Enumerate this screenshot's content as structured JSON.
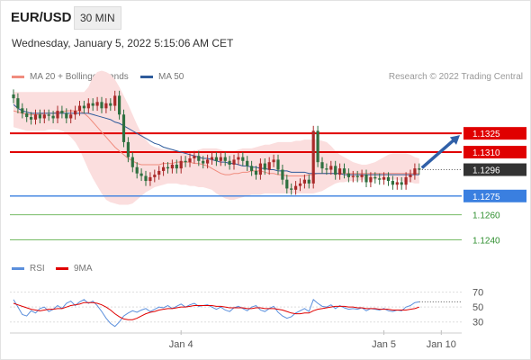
{
  "header": {
    "symbol": "EUR/USD",
    "timeframe": "30 MIN",
    "datetime": "Wednesday, January 5, 2022 5:15:06 AM CET"
  },
  "legend": {
    "ma20": {
      "label": "MA 20 + Bollinger Bands",
      "color": "#f08c7e"
    },
    "ma50": {
      "label": "MA 50",
      "color": "#2e5b9b"
    },
    "copyright": "Research © 2022 Trading Central"
  },
  "rsi_legend": {
    "rsi": {
      "label": "RSI",
      "color": "#5b8fdc"
    },
    "ma9": {
      "label": "9MA",
      "color": "#e00000"
    }
  },
  "colors": {
    "resistance": "#e00000",
    "support_primary": "#3a7fe0",
    "support": "#77bb66",
    "current": "#333333",
    "bull": "#aa2a2a",
    "bear": "#2f7040",
    "band": "#fbdede",
    "arrow": "#3060a8"
  },
  "chart_data": [
    {
      "type": "candlestick",
      "x_tick_labels": [
        "Jan 4",
        "Jan 5",
        "Jan 10"
      ],
      "ylim": [
        1.1226,
        1.1356
      ],
      "current_price": 1.1296,
      "levels": [
        {
          "value": 1.1325,
          "label": "1.1325",
          "kind": "resistance"
        },
        {
          "value": 1.131,
          "label": "1.1310",
          "kind": "resistance"
        },
        {
          "value": 1.1296,
          "label": "1.1296",
          "kind": "current"
        },
        {
          "value": 1.1275,
          "label": "1.1275",
          "kind": "support_primary"
        },
        {
          "value": 1.126,
          "label": "1.1260",
          "kind": "support"
        },
        {
          "value": 1.124,
          "label": "1.1240",
          "kind": "support"
        }
      ],
      "close": [
        1.1353,
        1.1345,
        1.1341,
        1.1338,
        1.1336,
        1.134,
        1.1337,
        1.134,
        1.1339,
        1.1337,
        1.1343,
        1.1341,
        1.1337,
        1.134,
        1.1343,
        1.1347,
        1.1345,
        1.1349,
        1.1347,
        1.135,
        1.1345,
        1.1349,
        1.1347,
        1.1355,
        1.134,
        1.1318,
        1.1306,
        1.1298,
        1.1293,
        1.1291,
        1.1287,
        1.129,
        1.1292,
        1.1295,
        1.1298,
        1.1297,
        1.13,
        1.1297,
        1.1303,
        1.1302,
        1.1305,
        1.1307,
        1.1303,
        1.1301,
        1.1304,
        1.1306,
        1.1303,
        1.1306,
        1.1303,
        1.13,
        1.1304,
        1.1306,
        1.1303,
        1.1299,
        1.1295,
        1.1292,
        1.1301,
        1.1296,
        1.1302,
        1.1304,
        1.1296,
        1.1288,
        1.1281,
        1.128,
        1.1283,
        1.1285,
        1.1288,
        1.1285,
        1.1327,
        1.1302,
        1.1297,
        1.1296,
        1.1299,
        1.1292,
        1.1297,
        1.1293,
        1.129,
        1.1291,
        1.129,
        1.1292,
        1.1286,
        1.129,
        1.1289,
        1.1288,
        1.129,
        1.1287,
        1.1284,
        1.1286,
        1.1284,
        1.129,
        1.1292,
        1.1297,
        1.1296
      ],
      "ma20": [
        1.1343,
        1.1342,
        1.1341,
        1.134,
        1.134,
        1.134,
        1.134,
        1.1341,
        1.1341,
        1.1341,
        1.1342,
        1.1342,
        1.1343,
        1.1343,
        1.1343,
        1.1343,
        1.1341,
        1.1338,
        1.1334,
        1.133,
        1.1326,
        1.1322,
        1.1318,
        1.1314,
        1.1311,
        1.1308,
        1.1305,
        1.1303,
        1.1301,
        1.13,
        1.13,
        1.13,
        1.13,
        1.13,
        1.1301,
        1.1301,
        1.1301,
        1.1302,
        1.1302,
        1.1302,
        1.1302,
        1.1301,
        1.1301,
        1.13,
        1.1299,
        1.1297,
        1.1295,
        1.1293,
        1.1292,
        1.1292,
        1.1293,
        1.1293,
        1.1294,
        1.1294,
        1.1295,
        1.1295,
        1.1295,
        1.1294,
        1.1293,
        1.1293,
        1.1292,
        1.1292,
        1.1291,
        1.1291,
        1.1291,
        1.1291,
        1.1291,
        1.1292,
        1.1292,
        1.1293,
        1.1293,
        1.1293,
        1.1293,
        1.1293,
        1.1293,
        1.1293,
        1.1293,
        1.1293,
        1.1293,
        1.1293,
        1.1293,
        1.1293,
        1.1293,
        1.1293,
        1.1293,
        1.1293,
        1.1293,
        1.1293,
        1.1293,
        1.1293,
        1.1293,
        1.1293,
        1.1293
      ],
      "bb_upper": [
        1.1358,
        1.1358,
        1.1358,
        1.1358,
        1.1358,
        1.1358,
        1.1358,
        1.1358,
        1.1358,
        1.1358,
        1.1358,
        1.1358,
        1.1358,
        1.1358,
        1.1358,
        1.1358,
        1.1358,
        1.1362,
        1.137,
        1.1374,
        1.1375,
        1.1374,
        1.1372,
        1.1368,
        1.1362,
        1.1355,
        1.1348,
        1.134,
        1.1332,
        1.1325,
        1.132,
        1.1316,
        1.1314,
        1.1313,
        1.1312,
        1.1312,
        1.1311,
        1.1311,
        1.1311,
        1.1311,
        1.1311,
        1.1311,
        1.1312,
        1.1313,
        1.1313,
        1.1313,
        1.1313,
        1.1312,
        1.1311,
        1.1311,
        1.1311,
        1.1312,
        1.1313,
        1.1313,
        1.1313,
        1.1314,
        1.1315,
        1.1316,
        1.1316,
        1.1317,
        1.1318,
        1.1318,
        1.1318,
        1.1318,
        1.1319,
        1.1319,
        1.132,
        1.132,
        1.132,
        1.132,
        1.1319,
        1.1318,
        1.1315,
        1.1311,
        1.1308,
        1.1306,
        1.1304,
        1.1302,
        1.1301,
        1.13,
        1.13,
        1.1301,
        1.1302,
        1.1304,
        1.1306,
        1.1308,
        1.1309,
        1.1309,
        1.1309,
        1.1309,
        1.1308,
        1.1306,
        1.1305
      ],
      "bb_lower": [
        1.133,
        1.1329,
        1.1328,
        1.1327,
        1.1327,
        1.1327,
        1.1327,
        1.1327,
        1.1328,
        1.1328,
        1.1328,
        1.1327,
        1.1325,
        1.1322,
        1.1318,
        1.1312,
        1.1304,
        1.1296,
        1.1289,
        1.1283,
        1.1277,
        1.1272,
        1.127,
        1.1269,
        1.1268,
        1.1268,
        1.1268,
        1.1269,
        1.1272,
        1.1275,
        1.1278,
        1.128,
        1.1282,
        1.1283,
        1.1284,
        1.1285,
        1.1285,
        1.1285,
        1.1284,
        1.1284,
        1.1283,
        1.1283,
        1.1282,
        1.1282,
        1.1281,
        1.128,
        1.1277,
        1.1275,
        1.1273,
        1.1272,
        1.1272,
        1.1273,
        1.1274,
        1.1275,
        1.1276,
        1.1276,
        1.1276,
        1.1277,
        1.1277,
        1.1277,
        1.1277,
        1.1277,
        1.1277,
        1.1277,
        1.1277,
        1.1277,
        1.1277,
        1.1277,
        1.1277,
        1.1278,
        1.1279,
        1.1281,
        1.1283,
        1.1285,
        1.1286,
        1.1286,
        1.1287,
        1.1287,
        1.1287,
        1.1288,
        1.1288,
        1.1288,
        1.1288,
        1.1288,
        1.1288,
        1.1288,
        1.1288,
        1.1288,
        1.1287,
        1.1286,
        1.1286,
        1.1285,
        1.1285
      ],
      "ma50": [
        1.1348,
        1.1345,
        1.1343,
        1.1342,
        1.1341,
        1.1341,
        1.1341,
        1.1341,
        1.1341,
        1.1341,
        1.1341,
        1.1341,
        1.1341,
        1.1341,
        1.1341,
        1.1341,
        1.1341,
        1.1341,
        1.134,
        1.1339,
        1.1338,
        1.1337,
        1.1336,
        1.1334,
        1.1333,
        1.1331,
        1.1329,
        1.1327,
        1.1325,
        1.1323,
        1.1321,
        1.1319,
        1.1317,
        1.1316,
        1.1314,
        1.1313,
        1.1312,
        1.1311,
        1.131,
        1.1309,
        1.1308,
        1.1307,
        1.1306,
        1.1305,
        1.1305,
        1.1304,
        1.1303,
        1.1302,
        1.1302,
        1.1301,
        1.1301,
        1.13,
        1.1299,
        1.1299,
        1.1298,
        1.1298,
        1.1297,
        1.1297,
        1.1296,
        1.1296,
        1.1295,
        1.1295,
        1.1295,
        1.1294,
        1.1294,
        1.1294,
        1.1294,
        1.1293,
        1.1293,
        1.1293,
        1.1293,
        1.1293,
        1.1293,
        1.1293,
        1.1293,
        1.1292,
        1.1292,
        1.1292,
        1.1292,
        1.1292,
        1.1292,
        1.1292,
        1.1292,
        1.1292,
        1.1292,
        1.1292,
        1.1292,
        1.1292,
        1.1292,
        1.1292,
        1.1292,
        1.1292,
        1.1292
      ],
      "projection": {
        "from": 1.1296,
        "to": 1.1325
      }
    },
    {
      "type": "line",
      "title": "RSI",
      "ylim": [
        20,
        78
      ],
      "y_tick_labels": [
        "70",
        "50",
        "30"
      ],
      "series": [
        {
          "name": "RSI",
          "values": [
            60,
            50,
            40,
            38,
            45,
            42,
            48,
            50,
            44,
            47,
            52,
            48,
            55,
            58,
            52,
            57,
            60,
            55,
            58,
            52,
            44,
            35,
            28,
            24,
            30,
            38,
            42,
            45,
            43,
            46,
            48,
            44,
            47,
            50,
            49,
            52,
            48,
            51,
            54,
            50,
            53,
            55,
            51,
            52,
            53,
            50,
            47,
            50,
            46,
            44,
            49,
            51,
            48,
            45,
            50,
            52,
            46,
            44,
            48,
            51,
            43,
            38,
            35,
            37,
            42,
            45,
            48,
            44,
            60,
            55,
            51,
            50,
            53,
            48,
            52,
            49,
            47,
            48,
            47,
            49,
            45,
            48,
            47,
            46,
            48,
            45,
            44,
            46,
            45,
            50,
            52,
            56,
            57
          ]
        },
        {
          "name": "9MA",
          "values": [
            55,
            53,
            51,
            49,
            47,
            46,
            45,
            46,
            47,
            47,
            48,
            48,
            50,
            52,
            53,
            54,
            56,
            56,
            56,
            55,
            53,
            50,
            46,
            41,
            37,
            34,
            33,
            33,
            35,
            38,
            41,
            43,
            44,
            46,
            47,
            48,
            48,
            49,
            50,
            50,
            51,
            52,
            52,
            52,
            52,
            52,
            51,
            51,
            50,
            49,
            49,
            49,
            49,
            48,
            48,
            49,
            49,
            48,
            48,
            48,
            47,
            46,
            44,
            42,
            41,
            41,
            42,
            42,
            45,
            47,
            48,
            49,
            50,
            51,
            51,
            51,
            50,
            50,
            49,
            49,
            48,
            48,
            48,
            47,
            47,
            47,
            46,
            46,
            46,
            46,
            47,
            48,
            50
          ]
        }
      ]
    }
  ]
}
